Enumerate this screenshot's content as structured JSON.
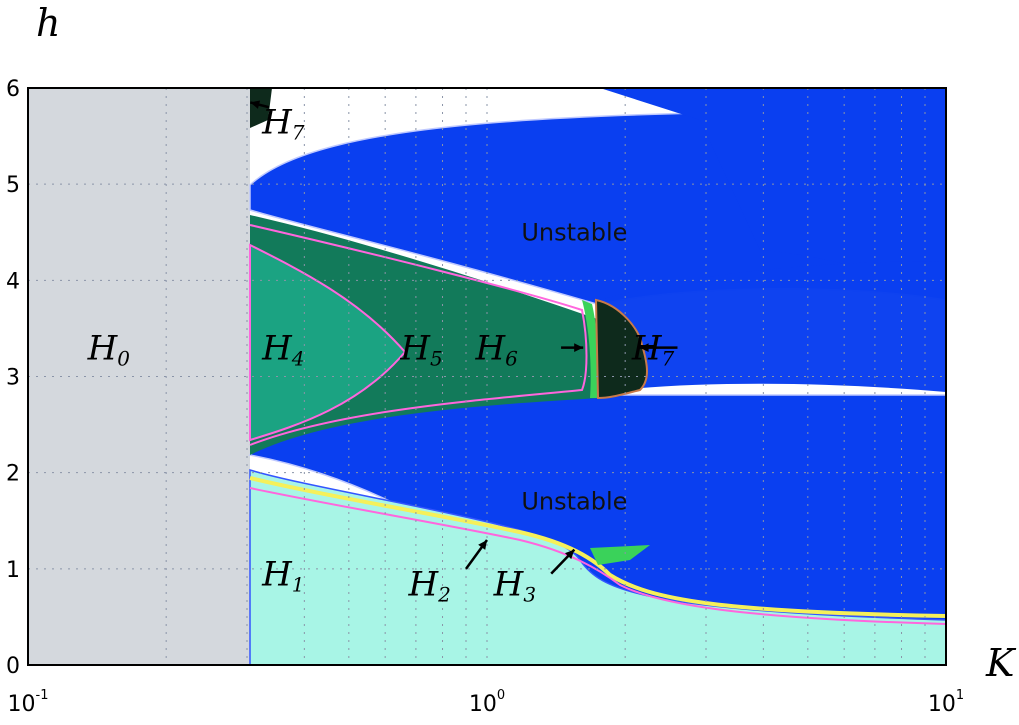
{
  "chart_data": {
    "type": "heatmap",
    "xlabel": "K",
    "ylabel": "h",
    "x_scale": "log",
    "xlim": [
      0.1,
      10
    ],
    "ylim": [
      0,
      6
    ],
    "x_ticks": [
      {
        "value": 0.1,
        "base": "10",
        "exp": "-1"
      },
      {
        "value": 1,
        "base": "10",
        "exp": "0"
      },
      {
        "value": 10,
        "base": "10",
        "exp": "1"
      }
    ],
    "y_ticks": [
      0,
      1,
      2,
      3,
      4,
      5,
      6
    ],
    "grid": true,
    "colors": {
      "H0": "#d4d8dd",
      "H1": "#a8f5e6",
      "H2": "#f5f05a",
      "H3": "#3ad25a",
      "H4": "#1ba382",
      "H5": "#127a5a",
      "H6": "#2e9e3e",
      "H7": "#0e2a1c",
      "unstable": "#0a3ff0",
      "white": "#ffffff",
      "boundary": "#ff66dd"
    },
    "regions": [
      {
        "id": "H0",
        "label_main": "H",
        "label_sub": "0",
        "at": {
          "K": 0.15,
          "h": 3.3
        }
      },
      {
        "id": "H1",
        "label_main": "H",
        "label_sub": "1",
        "at": {
          "K": 0.36,
          "h": 0.95
        }
      },
      {
        "id": "H2",
        "label_main": "H",
        "label_sub": "2",
        "at": {
          "K": 0.75,
          "h": 0.85
        }
      },
      {
        "id": "H3",
        "label_main": "H",
        "label_sub": "3",
        "at": {
          "K": 1.15,
          "h": 0.85
        }
      },
      {
        "id": "H4",
        "label_main": "H",
        "label_sub": "4",
        "at": {
          "K": 0.36,
          "h": 3.3
        }
      },
      {
        "id": "H5",
        "label_main": "H",
        "label_sub": "5",
        "at": {
          "K": 0.72,
          "h": 3.3
        }
      },
      {
        "id": "H6",
        "label_main": "H",
        "label_sub": "6",
        "at": {
          "K": 1.05,
          "h": 3.3
        }
      },
      {
        "id": "H7",
        "label_main": "H",
        "label_sub": "7",
        "at": {
          "K": 2.3,
          "h": 3.3
        }
      },
      {
        "id": "H7",
        "label_main": "H",
        "label_sub": "7",
        "at": {
          "K": 0.36,
          "h": 5.65
        }
      }
    ],
    "annotations": [
      {
        "text": "Unstable",
        "at": {
          "K": 1.55,
          "h": 4.5
        }
      },
      {
        "text": "Unstable",
        "at": {
          "K": 1.55,
          "h": 1.7
        }
      }
    ],
    "arrows": [
      {
        "from": {
          "K": 0.335,
          "h": 5.8
        },
        "to": {
          "K": 0.305,
          "h": 5.85
        }
      },
      {
        "from": {
          "K": 1.45,
          "h": 3.3
        },
        "to": {
          "K": 1.62,
          "h": 3.3
        }
      },
      {
        "from": {
          "K": 2.6,
          "h": 3.3
        },
        "to": {
          "K": 2.15,
          "h": 3.3
        }
      },
      {
        "from": {
          "K": 0.9,
          "h": 1.0
        },
        "to": {
          "K": 1.0,
          "h": 1.3
        }
      },
      {
        "from": {
          "K": 1.38,
          "h": 0.95
        },
        "to": {
          "K": 1.55,
          "h": 1.2
        }
      }
    ]
  }
}
